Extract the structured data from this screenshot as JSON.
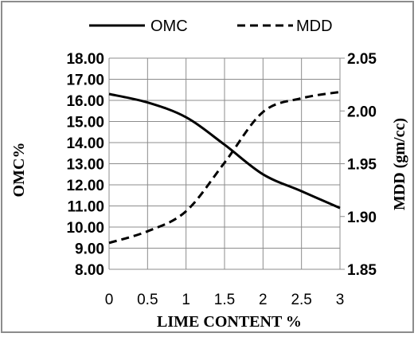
{
  "chart_data": {
    "type": "line",
    "xlabel": "LIME CONTENT %",
    "ylabel_left": "OMC%",
    "ylabel_right": "MDD (gm/cc)",
    "x_ticks": [
      "0",
      "0.5",
      "1",
      "1.5",
      "2",
      "2.5",
      "3"
    ],
    "y_left_ticks": [
      "18.00",
      "17.00",
      "16.00",
      "15.00",
      "14.00",
      "13.00",
      "12.00",
      "11.00",
      "10.00",
      "9.00",
      "8.00"
    ],
    "y_right_ticks": [
      "2.05",
      "2.00",
      "1.95",
      "1.90",
      "1.85"
    ],
    "xlim": [
      0,
      3
    ],
    "ylim_left": [
      8,
      18
    ],
    "ylim_right": [
      1.85,
      2.05
    ],
    "grid": true,
    "legend_position": "top",
    "series": [
      {
        "name": "OMC",
        "axis": "left",
        "style": "solid",
        "x": [
          0,
          0.5,
          1,
          1.5,
          2,
          2.5,
          3
        ],
        "y": [
          16.3,
          15.9,
          15.2,
          13.9,
          12.5,
          11.7,
          10.9
        ]
      },
      {
        "name": "MDD",
        "axis": "right",
        "style": "dashed",
        "x": [
          0,
          0.5,
          1,
          1.5,
          2,
          2.5,
          3
        ],
        "y": [
          1.875,
          1.886,
          1.905,
          1.951,
          1.999,
          2.012,
          2.018
        ]
      }
    ]
  },
  "colors": {
    "line": "#000000",
    "grid": "#8c8c8c",
    "frame": "#8c8c8c"
  }
}
